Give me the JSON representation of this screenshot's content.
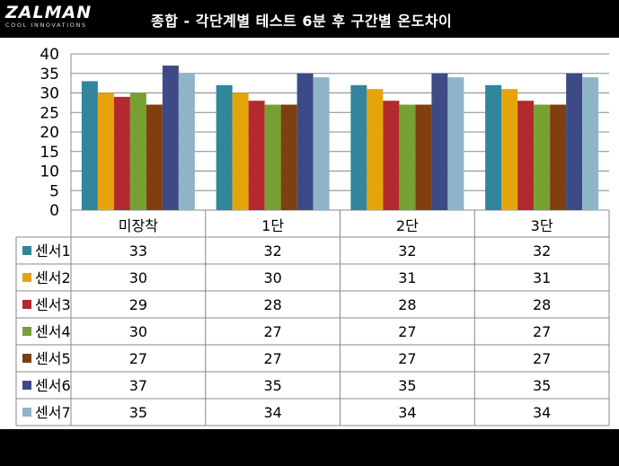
{
  "header": {
    "logo_main": "ZALMAN",
    "logo_sub": "COOL INNOVATIONS",
    "title": "종합 - 각단계별 테스트 6분 후 구간별 온도차이"
  },
  "chart_data": {
    "type": "bar",
    "categories": [
      "미장착",
      "1단",
      "2단",
      "3단"
    ],
    "series": [
      {
        "name": "센서1",
        "color": "#31859C",
        "values": [
          33,
          32,
          32,
          32
        ]
      },
      {
        "name": "센서2",
        "color": "#E5A50A",
        "values": [
          30,
          30,
          31,
          31
        ]
      },
      {
        "name": "센서3",
        "color": "#B22A2E",
        "values": [
          29,
          28,
          28,
          28
        ]
      },
      {
        "name": "센서4",
        "color": "#77A033",
        "values": [
          30,
          27,
          27,
          27
        ]
      },
      {
        "name": "센서5",
        "color": "#7F3F10",
        "values": [
          27,
          27,
          27,
          27
        ]
      },
      {
        "name": "센서6",
        "color": "#3D4A86",
        "values": [
          37,
          35,
          35,
          35
        ]
      },
      {
        "name": "센서7",
        "color": "#8FB4C8",
        "values": [
          35,
          34,
          34,
          34
        ]
      }
    ],
    "ylim": [
      0,
      40
    ],
    "yticks": [
      0,
      5,
      10,
      15,
      20,
      25,
      30,
      35,
      40
    ],
    "grid": true,
    "legend": "data-table"
  }
}
